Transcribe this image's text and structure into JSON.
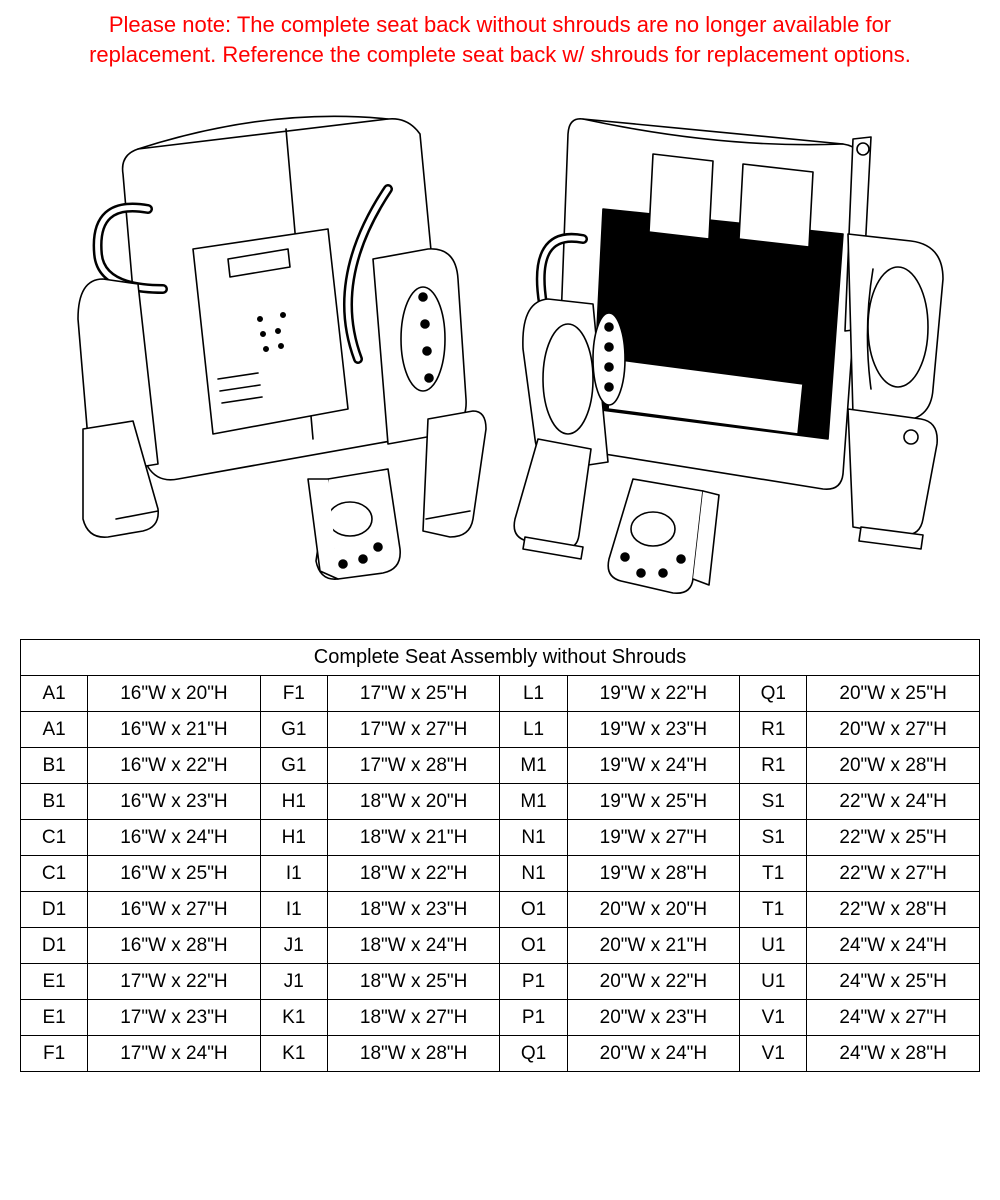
{
  "notice": {
    "text": "Please note: The complete seat back without shrouds are no longer available for replacement. Reference the complete seat back w/ shrouds for replacement options.",
    "color": "#ff0000",
    "fontsize": 22
  },
  "diagram": {
    "stroke_color": "#000000",
    "fill_light": "#ffffff",
    "fill_dark": "#000000",
    "stroke_width": 1.6
  },
  "table": {
    "title": "Complete Seat Assembly without Shrouds",
    "border_color": "#000000",
    "font_size": 19,
    "header_font_size": 20,
    "col_widths": {
      "code": "7%",
      "value": "18%"
    },
    "rows": [
      [
        [
          "A1",
          "16\"W x 20\"H"
        ],
        [
          "F1",
          "17\"W x 25\"H"
        ],
        [
          "L1",
          "19\"W x 22\"H"
        ],
        [
          "Q1",
          "20\"W x 25\"H"
        ]
      ],
      [
        [
          "A1",
          "16\"W x 21\"H"
        ],
        [
          "G1",
          "17\"W x 27\"H"
        ],
        [
          "L1",
          "19\"W x 23\"H"
        ],
        [
          "R1",
          "20\"W x 27\"H"
        ]
      ],
      [
        [
          "B1",
          "16\"W x 22\"H"
        ],
        [
          "G1",
          "17\"W x 28\"H"
        ],
        [
          "M1",
          "19\"W x 24\"H"
        ],
        [
          "R1",
          "20\"W x 28\"H"
        ]
      ],
      [
        [
          "B1",
          "16\"W x 23\"H"
        ],
        [
          "H1",
          "18\"W x 20\"H"
        ],
        [
          "M1",
          "19\"W x 25\"H"
        ],
        [
          "S1",
          "22\"W x 24\"H"
        ]
      ],
      [
        [
          "C1",
          "16\"W x 24\"H"
        ],
        [
          "H1",
          "18\"W x 21\"H"
        ],
        [
          "N1",
          "19\"W x 27\"H"
        ],
        [
          "S1",
          "22\"W x 25\"H"
        ]
      ],
      [
        [
          "C1",
          "16\"W x 25\"H"
        ],
        [
          "I1",
          "18\"W x 22\"H"
        ],
        [
          "N1",
          "19\"W x 28\"H"
        ],
        [
          "T1",
          "22\"W x 27\"H"
        ]
      ],
      [
        [
          "D1",
          "16\"W x 27\"H"
        ],
        [
          "I1",
          "18\"W x 23\"H"
        ],
        [
          "O1",
          "20\"W x 20\"H"
        ],
        [
          "T1",
          "22\"W x 28\"H"
        ]
      ],
      [
        [
          "D1",
          "16\"W x 28\"H"
        ],
        [
          "J1",
          "18\"W x 24\"H"
        ],
        [
          "O1",
          "20\"W x 21\"H"
        ],
        [
          "U1",
          "24\"W x 24\"H"
        ]
      ],
      [
        [
          "E1",
          "17\"W x 22\"H"
        ],
        [
          "J1",
          "18\"W x 25\"H"
        ],
        [
          "P1",
          "20\"W x 22\"H"
        ],
        [
          "U1",
          "24\"W x 25\"H"
        ]
      ],
      [
        [
          "E1",
          "17\"W x 23\"H"
        ],
        [
          "K1",
          "18\"W x 27\"H"
        ],
        [
          "P1",
          "20\"W x 23\"H"
        ],
        [
          "V1",
          "24\"W x 27\"H"
        ]
      ],
      [
        [
          "F1",
          "17\"W x 24\"H"
        ],
        [
          "K1",
          "18\"W x 28\"H"
        ],
        [
          "Q1",
          "20\"W x 24\"H"
        ],
        [
          "V1",
          "24\"W x 28\"H"
        ]
      ]
    ]
  }
}
